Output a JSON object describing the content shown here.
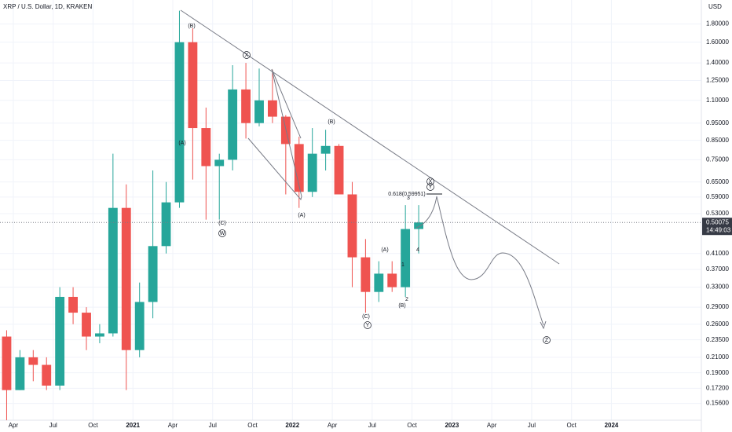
{
  "chart_data": {
    "type": "candlestick",
    "title": "XRP / U.S. Dollar, 1D, KRAKEN",
    "y_axis_label": "USD",
    "log_scale": true,
    "grid": true,
    "up_color": "#26a69a",
    "down_color": "#ef5350",
    "x": [
      "2020-03",
      "2020-04",
      "2020-05",
      "2020-06",
      "2020-07",
      "2020-08",
      "2020-09",
      "2020-10",
      "2020-11",
      "2020-12",
      "2021-01",
      "2021-02",
      "2021-03",
      "2021-04",
      "2021-05",
      "2021-06",
      "2021-07",
      "2021-08",
      "2021-09",
      "2021-10",
      "2021-11",
      "2021-12",
      "2022-01",
      "2022-02",
      "2022-03",
      "2022-04",
      "2022-05",
      "2022-06",
      "2022-07",
      "2022-08",
      "2022-09",
      "2022-10"
    ],
    "open": [
      0.24,
      0.17,
      0.21,
      0.2,
      0.175,
      0.31,
      0.28,
      0.24,
      0.245,
      0.55,
      0.22,
      0.3,
      0.43,
      0.57,
      1.6,
      0.92,
      0.72,
      0.75,
      1.18,
      0.95,
      1.1,
      0.99,
      0.83,
      0.61,
      0.78,
      0.82,
      0.6,
      0.4,
      0.32,
      0.36,
      0.33,
      0.48
    ],
    "high": [
      0.25,
      0.22,
      0.22,
      0.21,
      0.33,
      0.33,
      0.29,
      0.26,
      0.78,
      0.64,
      0.34,
      0.7,
      0.65,
      1.96,
      1.75,
      1.05,
      0.78,
      1.38,
      1.4,
      1.35,
      1.34,
      1.0,
      0.87,
      0.92,
      0.91,
      0.83,
      0.65,
      0.45,
      0.39,
      0.39,
      0.56,
      0.56
    ],
    "low": [
      0.14,
      0.17,
      0.18,
      0.17,
      0.17,
      0.26,
      0.22,
      0.23,
      0.24,
      0.17,
      0.21,
      0.27,
      0.41,
      0.55,
      0.66,
      0.51,
      0.51,
      0.7,
      0.86,
      0.93,
      0.95,
      0.6,
      0.55,
      0.59,
      0.7,
      0.6,
      0.33,
      0.28,
      0.3,
      0.32,
      0.31,
      0.41
    ],
    "close": [
      0.17,
      0.21,
      0.2,
      0.175,
      0.31,
      0.28,
      0.24,
      0.245,
      0.55,
      0.22,
      0.3,
      0.43,
      0.57,
      1.6,
      0.92,
      0.72,
      0.75,
      1.18,
      0.95,
      1.1,
      0.99,
      0.83,
      0.61,
      0.78,
      0.82,
      0.6,
      0.4,
      0.32,
      0.36,
      0.33,
      0.48,
      0.50075
    ],
    "xlim": [
      "2020-03",
      "2024-07"
    ],
    "xticks": [
      {
        "value": "2020-04",
        "label": "Apr"
      },
      {
        "value": "2020-07",
        "label": "Jul"
      },
      {
        "value": "2020-10",
        "label": "Oct"
      },
      {
        "value": "2021-01",
        "label": "2021"
      },
      {
        "value": "2021-04",
        "label": "Apr"
      },
      {
        "value": "2021-07",
        "label": "Jul"
      },
      {
        "value": "2021-10",
        "label": "Oct"
      },
      {
        "value": "2022-01",
        "label": "2022"
      },
      {
        "value": "2022-04",
        "label": "Apr"
      },
      {
        "value": "2022-07",
        "label": "Jul"
      },
      {
        "value": "2022-10",
        "label": "Oct"
      },
      {
        "value": "2023-01",
        "label": "2023"
      },
      {
        "value": "2023-04",
        "label": "Apr"
      },
      {
        "value": "2023-07",
        "label": "Jul"
      },
      {
        "value": "2023-10",
        "label": "Oct"
      },
      {
        "value": "2024-01",
        "label": "2024"
      }
    ],
    "ylim": [
      0.14,
      2.1
    ],
    "yticks": [
      {
        "value": 1.8,
        "label": "1.80000"
      },
      {
        "value": 1.6,
        "label": "1.60000"
      },
      {
        "value": 1.4,
        "label": "1.40000"
      },
      {
        "value": 1.25,
        "label": "1.25000"
      },
      {
        "value": 1.1,
        "label": "1.10000"
      },
      {
        "value": 0.95,
        "label": "0.95000"
      },
      {
        "value": 0.85,
        "label": "0.85000"
      },
      {
        "value": 0.75,
        "label": "0.75000"
      },
      {
        "value": 0.65,
        "label": "0.65000"
      },
      {
        "value": 0.59,
        "label": "0.59000"
      },
      {
        "value": 0.53,
        "label": "0.53000"
      },
      {
        "value": 0.41,
        "label": "0.41000"
      },
      {
        "value": 0.37,
        "label": "0.37000"
      },
      {
        "value": 0.33,
        "label": "0.33000"
      },
      {
        "value": 0.29,
        "label": "0.29000"
      },
      {
        "value": 0.26,
        "label": "0.26000"
      },
      {
        "value": 0.235,
        "label": "0.23500"
      },
      {
        "value": 0.21,
        "label": "0.21000"
      },
      {
        "value": 0.19,
        "label": "0.19000"
      },
      {
        "value": 0.172,
        "label": "0.17200"
      },
      {
        "value": 0.156,
        "label": "0.15600"
      }
    ],
    "current_price": {
      "value": 0.50075,
      "label": "0.50075"
    },
    "countdown": "14:49:03",
    "annotations": [
      "(B)",
      "(A)",
      "X",
      "(C)",
      "W",
      "(A)",
      "(B)",
      "(A)",
      "(C)",
      "Y",
      "(B)",
      "1",
      "2",
      "3",
      "4",
      "X",
      "Y",
      "0.618(0.59951)",
      "Z"
    ]
  }
}
